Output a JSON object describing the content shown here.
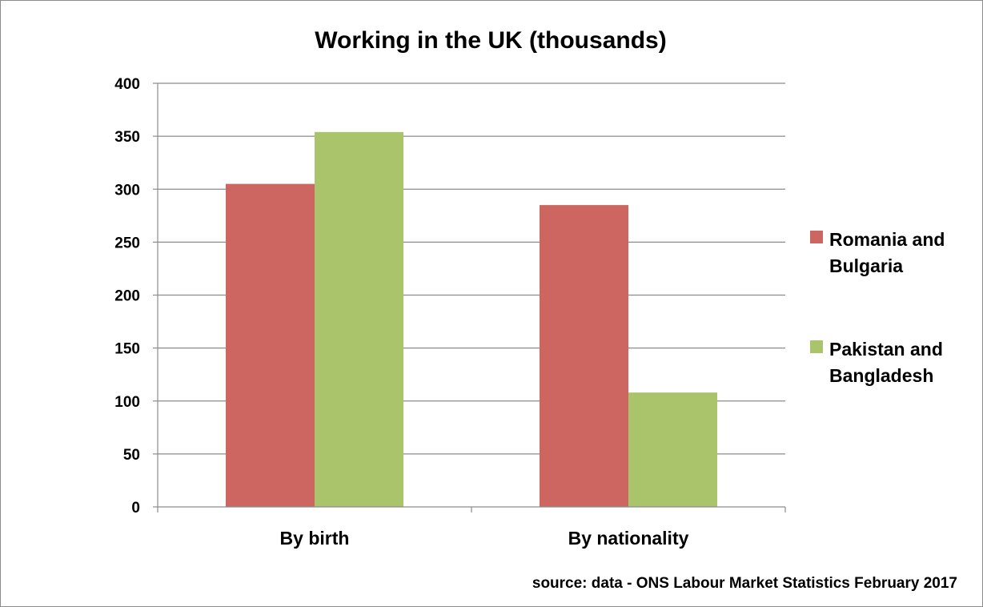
{
  "chart_data": {
    "type": "bar",
    "title": "Working in the UK (thousands)",
    "categories": [
      "By birth",
      "By nationality"
    ],
    "series": [
      {
        "name": "Romania and Bulgaria",
        "name_lines": [
          "Romania and",
          "Bulgaria"
        ],
        "color": "#cd6660",
        "values": [
          305,
          285
        ]
      },
      {
        "name": "Pakistan and Bangladesh",
        "name_lines": [
          "Pakistan and",
          "Bangladesh"
        ],
        "color": "#a9c46b",
        "values": [
          354,
          108
        ]
      }
    ],
    "ylim": [
      0,
      400
    ],
    "yticks": [
      "0",
      "50",
      "100",
      "150",
      "200",
      "250",
      "300",
      "350",
      "400"
    ],
    "grid": true,
    "legend_position": "right",
    "source": "source: data - ONS Labour Market Statistics February 2017"
  }
}
